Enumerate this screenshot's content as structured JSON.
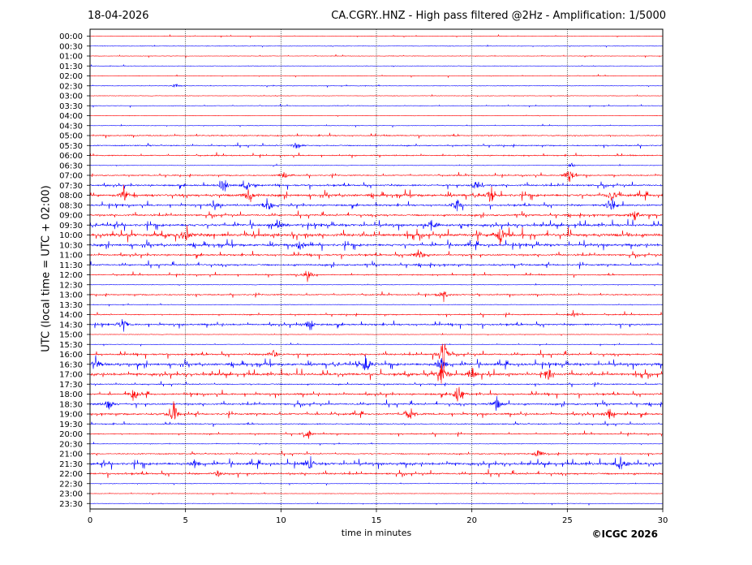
{
  "header": {
    "date": "18-04-2026",
    "title": "CA.CGRY..HNZ - High pass filtered @2Hz - Amplification: 1/5000"
  },
  "footer": {
    "copyright": "©ICGC 2026"
  },
  "chart_data": {
    "type": "line",
    "xlabel": "time in minutes",
    "ylabel": "UTC (local time = UTC + 02:00)",
    "xlim": [
      0,
      30
    ],
    "xticks": [
      0,
      5,
      10,
      15,
      20,
      25,
      30
    ],
    "grid": "vertical dotted at each 5 minutes",
    "colors": [
      "#ff0000",
      "#0000ff"
    ],
    "row_labels": [
      "00:00",
      "00:30",
      "01:00",
      "01:30",
      "02:00",
      "02:30",
      "03:00",
      "03:30",
      "04:00",
      "04:30",
      "05:00",
      "05:30",
      "06:00",
      "06:30",
      "07:00",
      "07:30",
      "08:00",
      "08:30",
      "09:00",
      "09:30",
      "10:00",
      "10:30",
      "11:00",
      "11:30",
      "12:00",
      "12:30",
      "13:00",
      "13:30",
      "14:00",
      "14:30",
      "15:00",
      "15:30",
      "16:00",
      "16:30",
      "17:00",
      "17:30",
      "18:00",
      "18:30",
      "19:00",
      "19:30",
      "20:00",
      "20:30",
      "21:00",
      "21:30",
      "22:00",
      "22:30",
      "23:00",
      "23:30"
    ],
    "row_activity": [
      1,
      1,
      1,
      1,
      1,
      1,
      1,
      1,
      1,
      1,
      2,
      2,
      2,
      1,
      2,
      3,
      4,
      3,
      3,
      4,
      5,
      4,
      3,
      3,
      2,
      1,
      2,
      1,
      2,
      3,
      1,
      1,
      3,
      4,
      4,
      2,
      3,
      3,
      3,
      2,
      2,
      1,
      2,
      4,
      3,
      1,
      1,
      1
    ],
    "events": [
      {
        "row": 5,
        "min": 4.5,
        "amp": 1
      },
      {
        "row": 11,
        "min": 10.8,
        "amp": 2
      },
      {
        "row": 13,
        "min": 25.2,
        "amp": 1
      },
      {
        "row": 14,
        "min": 10.2,
        "amp": 2
      },
      {
        "row": 14,
        "min": 25.1,
        "amp": 4
      },
      {
        "row": 15,
        "min": 7.0,
        "amp": 3
      },
      {
        "row": 15,
        "min": 8.2,
        "amp": 3
      },
      {
        "row": 15,
        "min": 20.2,
        "amp": 2
      },
      {
        "row": 16,
        "min": 1.8,
        "amp": 3
      },
      {
        "row": 16,
        "min": 8.3,
        "amp": 3
      },
      {
        "row": 16,
        "min": 21.0,
        "amp": 3
      },
      {
        "row": 16,
        "min": 27.3,
        "amp": 3
      },
      {
        "row": 17,
        "min": 6.5,
        "amp": 3
      },
      {
        "row": 17,
        "min": 9.3,
        "amp": 4
      },
      {
        "row": 17,
        "min": 19.2,
        "amp": 3
      },
      {
        "row": 17,
        "min": 27.3,
        "amp": 5
      },
      {
        "row": 18,
        "min": 28.5,
        "amp": 3
      },
      {
        "row": 19,
        "min": 9.9,
        "amp": 2
      },
      {
        "row": 19,
        "min": 17.9,
        "amp": 3
      },
      {
        "row": 20,
        "min": 5.0,
        "amp": 3
      },
      {
        "row": 20,
        "min": 21.5,
        "amp": 4
      },
      {
        "row": 21,
        "min": 11.0,
        "amp": 3
      },
      {
        "row": 22,
        "min": 17.2,
        "amp": 3
      },
      {
        "row": 24,
        "min": 11.4,
        "amp": 3
      },
      {
        "row": 26,
        "min": 18.5,
        "amp": 3
      },
      {
        "row": 28,
        "min": 25.3,
        "amp": 2
      },
      {
        "row": 29,
        "min": 1.7,
        "amp": 4
      },
      {
        "row": 29,
        "min": 11.5,
        "amp": 3
      },
      {
        "row": 32,
        "min": 9.6,
        "amp": 3
      },
      {
        "row": 32,
        "min": 18.5,
        "amp": 7
      },
      {
        "row": 33,
        "min": 0.3,
        "amp": 4
      },
      {
        "row": 33,
        "min": 14.5,
        "amp": 5
      },
      {
        "row": 33,
        "min": 18.4,
        "amp": 6
      },
      {
        "row": 34,
        "min": 18.4,
        "amp": 7
      },
      {
        "row": 34,
        "min": 20.0,
        "amp": 3
      },
      {
        "row": 34,
        "min": 24.0,
        "amp": 3
      },
      {
        "row": 36,
        "min": 2.3,
        "amp": 3
      },
      {
        "row": 36,
        "min": 19.3,
        "amp": 5
      },
      {
        "row": 37,
        "min": 1.0,
        "amp": 3
      },
      {
        "row": 37,
        "min": 21.3,
        "amp": 3
      },
      {
        "row": 38,
        "min": 4.4,
        "amp": 4
      },
      {
        "row": 38,
        "min": 16.8,
        "amp": 3
      },
      {
        "row": 38,
        "min": 27.2,
        "amp": 3
      },
      {
        "row": 40,
        "min": 11.4,
        "amp": 2
      },
      {
        "row": 42,
        "min": 23.5,
        "amp": 3
      },
      {
        "row": 43,
        "min": 5.5,
        "amp": 3
      },
      {
        "row": 43,
        "min": 11.5,
        "amp": 3
      },
      {
        "row": 43,
        "min": 27.8,
        "amp": 5
      },
      {
        "row": 44,
        "min": 6.7,
        "amp": 2
      }
    ]
  }
}
